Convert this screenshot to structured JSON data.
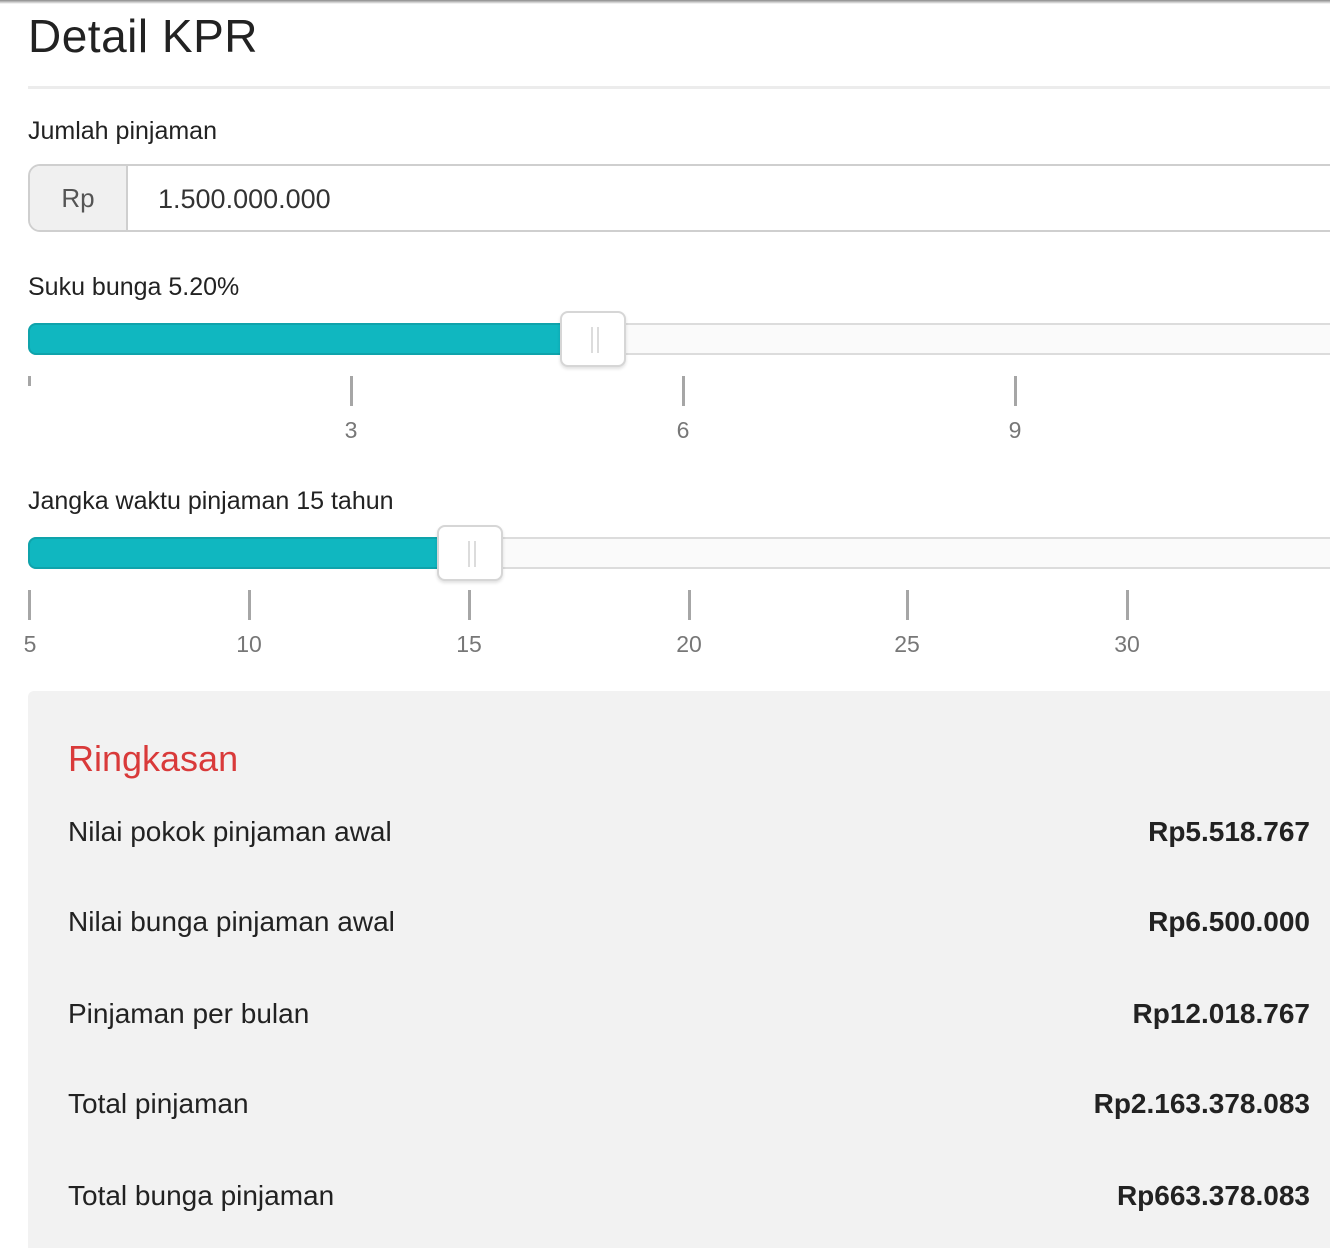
{
  "page": {
    "title": "Detail KPR"
  },
  "loan_amount": {
    "label": "Jumlah pinjaman",
    "currency_prefix": "Rp",
    "value": "1.500.000.000"
  },
  "interest_rate": {
    "label": "Suku bunga 5.20%",
    "value": 5.2,
    "min": 0,
    "max": 12,
    "ticks": [
      "3",
      "6",
      "9"
    ]
  },
  "loan_term": {
    "label": "Jangka waktu pinjaman 15 tahun",
    "value": 15,
    "min": 5,
    "max": 35,
    "ticks": [
      "5",
      "10",
      "15",
      "20",
      "25",
      "30"
    ]
  },
  "summary": {
    "title": "Ringkasan",
    "rows": [
      {
        "label": "Nilai pokok pinjaman awal",
        "value": "Rp5.518.767"
      },
      {
        "label": "Nilai bunga pinjaman awal",
        "value": "Rp6.500.000"
      },
      {
        "label": "Pinjaman per bulan",
        "value": "Rp12.018.767"
      },
      {
        "label": "Total pinjaman",
        "value": "Rp2.163.378.083"
      },
      {
        "label": "Total bunga pinjaman",
        "value": "Rp663.378.083"
      }
    ]
  },
  "colors": {
    "slider_fill": "#10b7c0",
    "summary_title": "#d93a3a",
    "summary_background": "#f2f2f2"
  }
}
